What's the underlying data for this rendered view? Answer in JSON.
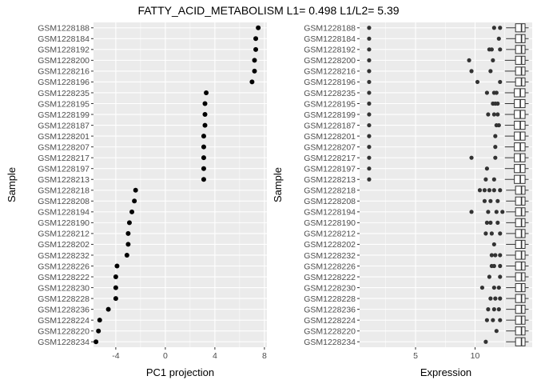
{
  "title": "FATTY_ACID_METABOLISM L1= 0.498 L1/L2= 5.39",
  "samples": [
    "GSM1228188",
    "GSM1228184",
    "GSM1228192",
    "GSM1228200",
    "GSM1228216",
    "GSM1228196",
    "GSM1228235",
    "GSM1228195",
    "GSM1228199",
    "GSM1228187",
    "GSM1228201",
    "GSM1228207",
    "GSM1228217",
    "GSM1228197",
    "GSM1228213",
    "GSM1228218",
    "GSM1228208",
    "GSM1228194",
    "GSM1228190",
    "GSM1228212",
    "GSM1228202",
    "GSM1228232",
    "GSM1228226",
    "GSM1228222",
    "GSM1228230",
    "GSM1228228",
    "GSM1228236",
    "GSM1228224",
    "GSM1228220",
    "GSM1228234"
  ],
  "colors": {
    "panel_bg": "#ebebeb",
    "grid_major": "#ffffff",
    "point": "#000000",
    "box_point": "#333333"
  },
  "chart_data": [
    {
      "type": "scatter",
      "title": "FATTY_ACID_METABOLISM L1= 0.498 L1/L2= 5.39",
      "xlabel": "PC1 projection",
      "ylabel": "Sample",
      "xlim": [
        -5.8,
        8.2
      ],
      "xticks": [
        -4,
        0,
        4,
        8
      ],
      "xtick_labels": [
        "-4",
        "0",
        "4",
        "8"
      ],
      "grid": true,
      "points": [
        {
          "sample": "GSM1228188",
          "x": 7.5
        },
        {
          "sample": "GSM1228184",
          "x": 7.3
        },
        {
          "sample": "GSM1228192",
          "x": 7.3
        },
        {
          "sample": "GSM1228200",
          "x": 7.2
        },
        {
          "sample": "GSM1228216",
          "x": 7.2
        },
        {
          "sample": "GSM1228196",
          "x": 7.0
        },
        {
          "sample": "GSM1228235",
          "x": 3.3
        },
        {
          "sample": "GSM1228195",
          "x": 3.2
        },
        {
          "sample": "GSM1228199",
          "x": 3.2
        },
        {
          "sample": "GSM1228187",
          "x": 3.2
        },
        {
          "sample": "GSM1228201",
          "x": 3.1
        },
        {
          "sample": "GSM1228207",
          "x": 3.1
        },
        {
          "sample": "GSM1228217",
          "x": 3.1
        },
        {
          "sample": "GSM1228197",
          "x": 3.1
        },
        {
          "sample": "GSM1228213",
          "x": 3.1
        },
        {
          "sample": "GSM1228218",
          "x": -2.4
        },
        {
          "sample": "GSM1228208",
          "x": -2.5
        },
        {
          "sample": "GSM1228194",
          "x": -2.7
        },
        {
          "sample": "GSM1228190",
          "x": -2.9
        },
        {
          "sample": "GSM1228212",
          "x": -3.0
        },
        {
          "sample": "GSM1228202",
          "x": -3.0
        },
        {
          "sample": "GSM1228232",
          "x": -3.1
        },
        {
          "sample": "GSM1228226",
          "x": -3.9
        },
        {
          "sample": "GSM1228222",
          "x": -4.0
        },
        {
          "sample": "GSM1228230",
          "x": -4.0
        },
        {
          "sample": "GSM1228228",
          "x": -4.0
        },
        {
          "sample": "GSM1228236",
          "x": -4.6
        },
        {
          "sample": "GSM1228224",
          "x": -5.3
        },
        {
          "sample": "GSM1228220",
          "x": -5.4
        },
        {
          "sample": "GSM1228234",
          "x": -5.6
        }
      ]
    },
    {
      "type": "boxplot",
      "xlabel": "Expression",
      "ylabel": "Sample",
      "xlim": [
        0.3,
        14.8
      ],
      "xticks": [
        5,
        10
      ],
      "xtick_labels": [
        "5",
        "10"
      ],
      "grid": true,
      "boxes": [
        {
          "sample": "GSM1228188",
          "whisker_low": 12.6,
          "q1": 13.4,
          "median": 13.9,
          "q3": 14.2,
          "whisker_high": 14.5,
          "outliers": [
            1.1,
            11.6,
            12.1
          ]
        },
        {
          "sample": "GSM1228184",
          "whisker_low": 12.6,
          "q1": 13.4,
          "median": 13.9,
          "q3": 14.2,
          "whisker_high": 14.5,
          "outliers": [
            1.1,
            12.0
          ]
        },
        {
          "sample": "GSM1228192",
          "whisker_low": 12.6,
          "q1": 13.4,
          "median": 13.9,
          "q3": 14.2,
          "whisker_high": 14.5,
          "outliers": [
            1.1,
            11.2,
            11.4,
            12.1
          ]
        },
        {
          "sample": "GSM1228200",
          "whisker_low": 12.5,
          "q1": 13.4,
          "median": 13.9,
          "q3": 14.2,
          "whisker_high": 14.5,
          "outliers": [
            1.1,
            9.5,
            11.5
          ]
        },
        {
          "sample": "GSM1228216",
          "whisker_low": 12.5,
          "q1": 13.4,
          "median": 13.9,
          "q3": 14.2,
          "whisker_high": 14.5,
          "outliers": [
            1.1,
            9.7,
            11.3
          ]
        },
        {
          "sample": "GSM1228196",
          "whisker_low": 12.6,
          "q1": 13.4,
          "median": 13.9,
          "q3": 14.2,
          "whisker_high": 14.5,
          "outliers": [
            1.1,
            10.2,
            12.1
          ]
        },
        {
          "sample": "GSM1228235",
          "whisker_low": 12.5,
          "q1": 13.3,
          "median": 13.8,
          "q3": 14.2,
          "whisker_high": 14.5,
          "outliers": [
            1.1,
            11.0,
            11.6,
            11.8
          ]
        },
        {
          "sample": "GSM1228195",
          "whisker_low": 12.5,
          "q1": 13.3,
          "median": 13.8,
          "q3": 14.2,
          "whisker_high": 14.5,
          "outliers": [
            1.1,
            11.5,
            11.7,
            11.9
          ]
        },
        {
          "sample": "GSM1228199",
          "whisker_low": 12.5,
          "q1": 13.3,
          "median": 13.8,
          "q3": 14.2,
          "whisker_high": 14.5,
          "outliers": [
            1.1,
            11.1,
            11.6,
            11.9
          ]
        },
        {
          "sample": "GSM1228187",
          "whisker_low": 12.5,
          "q1": 13.3,
          "median": 13.8,
          "q3": 14.2,
          "whisker_high": 14.5,
          "outliers": [
            1.1,
            11.8,
            12.0
          ]
        },
        {
          "sample": "GSM1228201",
          "whisker_low": 12.5,
          "q1": 13.3,
          "median": 13.8,
          "q3": 14.2,
          "whisker_high": 14.5,
          "outliers": [
            1.1,
            11.7
          ]
        },
        {
          "sample": "GSM1228207",
          "whisker_low": 12.5,
          "q1": 13.3,
          "median": 13.8,
          "q3": 14.2,
          "whisker_high": 14.5,
          "outliers": [
            1.1,
            11.7
          ]
        },
        {
          "sample": "GSM1228217",
          "whisker_low": 12.5,
          "q1": 13.3,
          "median": 13.8,
          "q3": 14.2,
          "whisker_high": 14.5,
          "outliers": [
            1.1,
            9.7,
            11.7
          ]
        },
        {
          "sample": "GSM1228197",
          "whisker_low": 12.5,
          "q1": 13.3,
          "median": 13.8,
          "q3": 14.2,
          "whisker_high": 14.5,
          "outliers": [
            1.1,
            11.0
          ]
        },
        {
          "sample": "GSM1228213",
          "whisker_low": 12.5,
          "q1": 13.3,
          "median": 13.8,
          "q3": 14.2,
          "whisker_high": 14.5,
          "outliers": [
            1.1,
            10.9,
            11.6
          ]
        },
        {
          "sample": "GSM1228218",
          "whisker_low": 12.6,
          "q1": 13.4,
          "median": 13.9,
          "q3": 14.2,
          "whisker_high": 14.5,
          "outliers": [
            10.4,
            10.8,
            11.2,
            11.6,
            12.1
          ]
        },
        {
          "sample": "GSM1228208",
          "whisker_low": 12.6,
          "q1": 13.4,
          "median": 13.9,
          "q3": 14.2,
          "whisker_high": 14.5,
          "outliers": [
            10.8,
            11.3,
            11.9
          ]
        },
        {
          "sample": "GSM1228194",
          "whisker_low": 12.6,
          "q1": 13.4,
          "median": 13.9,
          "q3": 14.2,
          "whisker_high": 14.5,
          "outliers": [
            9.7,
            11.1,
            11.8,
            12.3
          ]
        },
        {
          "sample": "GSM1228190",
          "whisker_low": 12.6,
          "q1": 13.4,
          "median": 13.9,
          "q3": 14.2,
          "whisker_high": 14.5,
          "outliers": [
            11.0,
            11.3,
            11.9
          ]
        },
        {
          "sample": "GSM1228212",
          "whisker_low": 12.6,
          "q1": 13.4,
          "median": 13.9,
          "q3": 14.2,
          "whisker_high": 14.5,
          "outliers": [
            10.9,
            11.4,
            12.1
          ]
        },
        {
          "sample": "GSM1228202",
          "whisker_low": 12.6,
          "q1": 13.4,
          "median": 13.9,
          "q3": 14.2,
          "whisker_high": 14.5,
          "outliers": [
            11.6
          ]
        },
        {
          "sample": "GSM1228232",
          "whisker_low": 12.6,
          "q1": 13.4,
          "median": 13.9,
          "q3": 14.2,
          "whisker_high": 14.5,
          "outliers": [
            11.4,
            11.7,
            12.1
          ]
        },
        {
          "sample": "GSM1228226",
          "whisker_low": 12.6,
          "q1": 13.4,
          "median": 13.9,
          "q3": 14.2,
          "whisker_high": 14.5,
          "outliers": [
            11.4,
            11.6,
            12.1
          ]
        },
        {
          "sample": "GSM1228222",
          "whisker_low": 12.6,
          "q1": 13.4,
          "median": 13.9,
          "q3": 14.2,
          "whisker_high": 14.5,
          "outliers": [
            11.2,
            12.1
          ]
        },
        {
          "sample": "GSM1228230",
          "whisker_low": 12.6,
          "q1": 13.4,
          "median": 13.9,
          "q3": 14.2,
          "whisker_high": 14.5,
          "outliers": [
            10.6,
            11.6,
            12.0
          ]
        },
        {
          "sample": "GSM1228228",
          "whisker_low": 12.6,
          "q1": 13.4,
          "median": 13.9,
          "q3": 14.2,
          "whisker_high": 14.5,
          "outliers": [
            11.3,
            11.7,
            12.1
          ]
        },
        {
          "sample": "GSM1228236",
          "whisker_low": 12.6,
          "q1": 13.4,
          "median": 13.9,
          "q3": 14.2,
          "whisker_high": 14.5,
          "outliers": [
            11.1,
            11.6,
            12.0
          ]
        },
        {
          "sample": "GSM1228224",
          "whisker_low": 12.6,
          "q1": 13.4,
          "median": 13.9,
          "q3": 14.2,
          "whisker_high": 14.5,
          "outliers": [
            11.0,
            11.5,
            12.1
          ]
        },
        {
          "sample": "GSM1228220",
          "whisker_low": 12.6,
          "q1": 13.4,
          "median": 13.9,
          "q3": 14.2,
          "whisker_high": 14.5,
          "outliers": [
            11.8
          ]
        },
        {
          "sample": "GSM1228234",
          "whisker_low": 12.6,
          "q1": 13.4,
          "median": 13.9,
          "q3": 14.2,
          "whisker_high": 14.5,
          "outliers": [
            10.9
          ]
        }
      ]
    }
  ]
}
